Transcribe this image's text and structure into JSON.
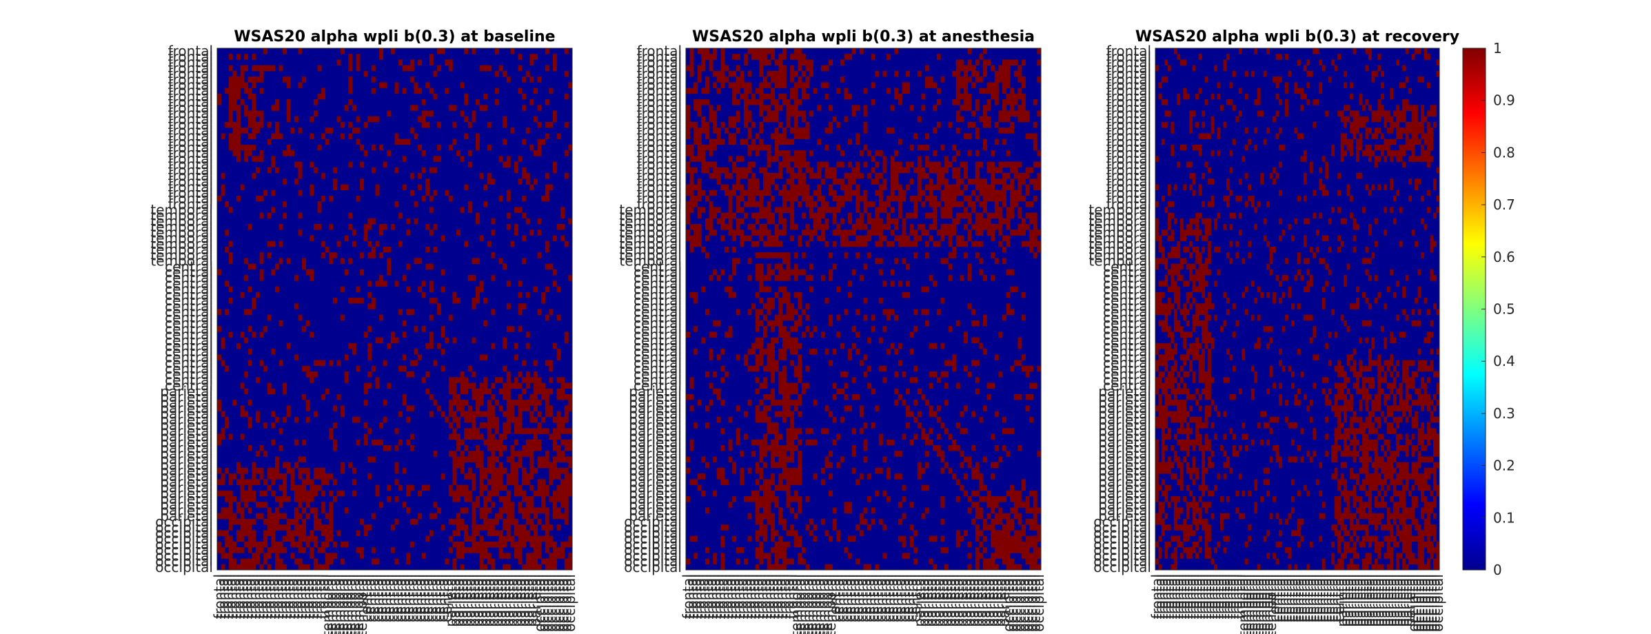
{
  "figure_background": "#ffffff",
  "colormap": "jet",
  "chart_data": [
    {
      "type": "heatmap",
      "title": "WSAS20 alpha wpli b(0.3) at baseline",
      "xlabel": "",
      "ylabel": "",
      "matrix_size": 92,
      "region_labels": [
        "frontal",
        "frontal",
        "frontal",
        "frontal",
        "frontal",
        "frontal",
        "frontal",
        "frontal",
        "frontal",
        "frontal",
        "frontal",
        "frontal",
        "frontal",
        "frontal",
        "frontal",
        "frontal",
        "frontal",
        "frontal",
        "frontal",
        "frontal",
        "frontal",
        "frontal",
        "frontal",
        "frontal",
        "frontal",
        "frontal",
        "frontal",
        "frontal",
        "temporal",
        "temporal",
        "temporal",
        "temporal",
        "temporal",
        "temporal",
        "temporal",
        "temporal",
        "temporal",
        "temporal",
        "central",
        "central",
        "central",
        "central",
        "central",
        "central",
        "central",
        "central",
        "central",
        "central",
        "central",
        "central",
        "central",
        "central",
        "central",
        "central",
        "central",
        "central",
        "central",
        "central",
        "central",
        "central",
        "parietal",
        "parietal",
        "parietal",
        "parietal",
        "parietal",
        "parietal",
        "parietal",
        "parietal",
        "parietal",
        "parietal",
        "parietal",
        "parietal",
        "parietal",
        "parietal",
        "parietal",
        "parietal",
        "parietal",
        "parietal",
        "parietal",
        "parietal",
        "parietal",
        "parietal",
        "parietal",
        "occipital",
        "occipital",
        "occipital",
        "occipital",
        "occipital",
        "occipital",
        "occipital",
        "occipital",
        "occipital"
      ],
      "value_range": [
        0,
        1
      ],
      "values_binary": true,
      "dense_blocks": [
        {
          "rows": [
            3,
            20
          ],
          "cols": [
            3,
            12
          ],
          "value": 1
        },
        {
          "rows": [
            58,
            92
          ],
          "cols": [
            60,
            92
          ],
          "value": 1
        },
        {
          "rows": [
            74,
            92
          ],
          "cols": [
            0,
            30
          ],
          "value": 1
        }
      ],
      "approx_fraction_ones": 0.28
    },
    {
      "type": "heatmap",
      "title": "WSAS20 alpha wpli b(0.3) at anesthesia",
      "xlabel": "",
      "ylabel": "",
      "matrix_size": 92,
      "value_range": [
        0,
        1
      ],
      "values_binary": true,
      "dense_blocks": [
        {
          "rows": [
            0,
            35
          ],
          "cols": [
            0,
            32
          ],
          "value": 1
        },
        {
          "rows": [
            20,
            35
          ],
          "cols": [
            30,
            92
          ],
          "value": 1
        },
        {
          "rows": [
            36,
            92
          ],
          "cols": [
            18,
            30
          ],
          "value": 1
        },
        {
          "rows": [
            2,
            15
          ],
          "cols": [
            70,
            88
          ],
          "value": 1
        },
        {
          "rows": [
            78,
            92
          ],
          "cols": [
            75,
            92
          ],
          "value": 1
        }
      ],
      "approx_fraction_ones": 0.3
    },
    {
      "type": "heatmap",
      "title": "WSAS20 alpha wpli b(0.3) at recovery",
      "xlabel": "",
      "ylabel": "",
      "matrix_size": 92,
      "value_range": [
        0,
        1
      ],
      "values_binary": true,
      "dense_blocks": [
        {
          "rows": [
            55,
            92
          ],
          "cols": [
            58,
            92
          ],
          "value": 1
        },
        {
          "rows": [
            30,
            90
          ],
          "cols": [
            0,
            18
          ],
          "value": 1
        },
        {
          "rows": [
            10,
            20
          ],
          "cols": [
            60,
            90
          ],
          "value": 1
        }
      ],
      "approx_fraction_ones": 0.3
    }
  ],
  "colorbar": {
    "ticks": [
      "1",
      "0.9",
      "0.8",
      "0.7",
      "0.6",
      "0.5",
      "0.4",
      "0.3",
      "0.2",
      "0.1",
      "0"
    ],
    "range": [
      0,
      1
    ]
  }
}
